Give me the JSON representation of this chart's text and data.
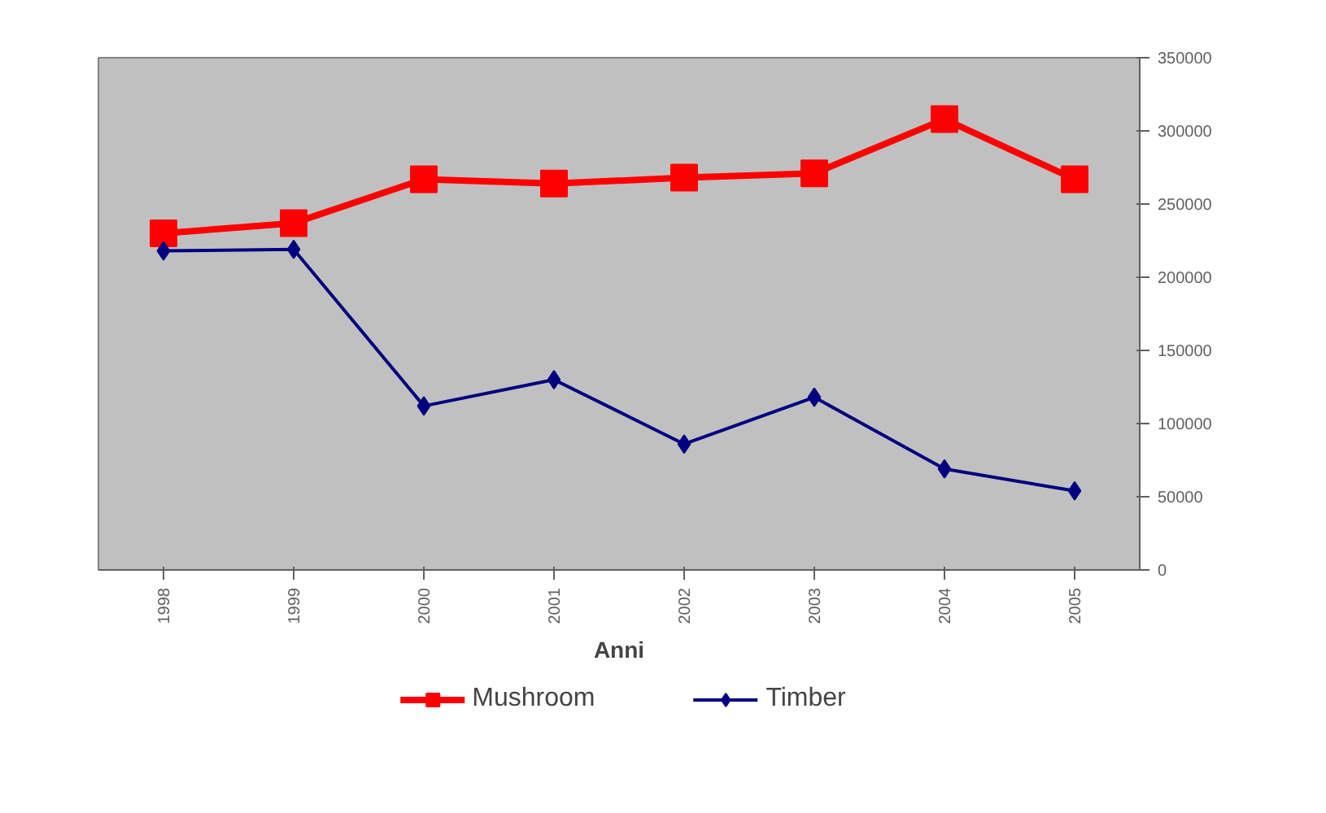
{
  "chart_data": {
    "type": "line",
    "xlabel": "Anni",
    "categories": [
      "1998",
      "1999",
      "2000",
      "2001",
      "2002",
      "2003",
      "2004",
      "2005"
    ],
    "series": [
      {
        "name": "Mushroom",
        "color": "#ff0000",
        "marker": "square",
        "values": [
          230000,
          237000,
          267000,
          264000,
          268000,
          271000,
          308000,
          267000
        ]
      },
      {
        "name": "Timber",
        "color": "#000080",
        "marker": "diamond",
        "values": [
          218000,
          219000,
          112000,
          130000,
          86000,
          118000,
          69000,
          54000
        ]
      }
    ],
    "ylim": [
      0,
      350000
    ],
    "yticks": [
      0,
      50000,
      100000,
      150000,
      200000,
      250000,
      300000,
      350000
    ],
    "grid": false,
    "legend": "bottom"
  }
}
